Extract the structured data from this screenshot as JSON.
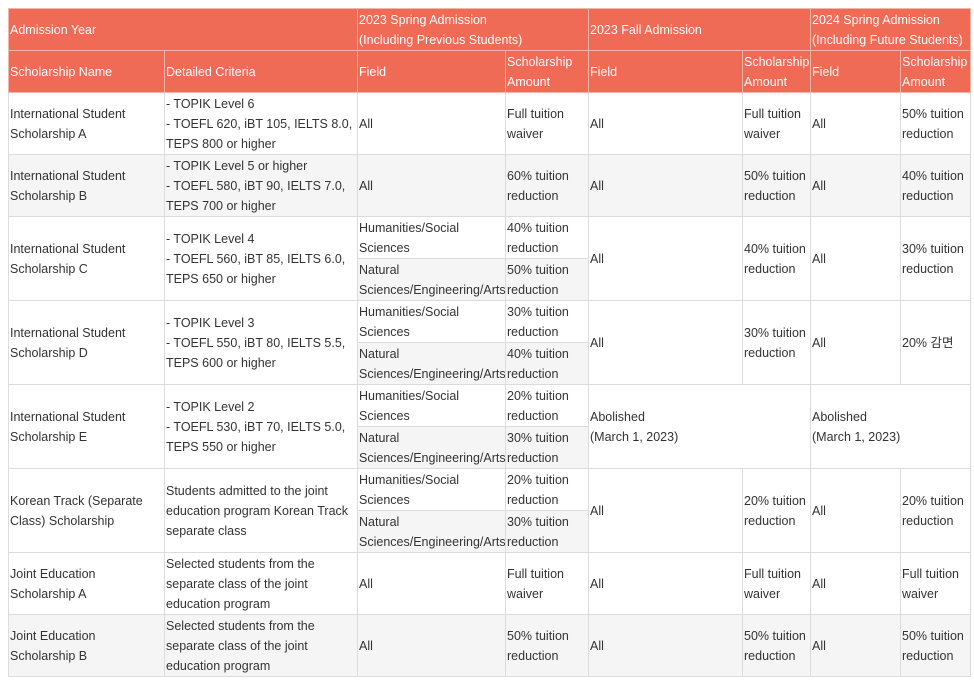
{
  "header": {
    "year": "Admission Year",
    "groups": [
      [
        "2023 Spring Admission",
        "(Including Previous Students)"
      ],
      [
        "2023 Fall Admission"
      ],
      [
        "2024 Spring Admission",
        "(Including Future Students)"
      ]
    ],
    "columns": [
      "Scholarship Name",
      "Detailed Criteria",
      "Field",
      "Scholarship Amount",
      "Field",
      "Scholarship Amount",
      "Field",
      "Scholarship Amount"
    ]
  },
  "rows": [
    {
      "name": "International Student Scholarship A",
      "criteria": [
        "- TOPIK Level 6",
        "- TOEFL 620, iBT 105, IELTS 8.0, TEPS 800 or higher"
      ],
      "spring2023": [
        {
          "field": "All",
          "amount": "Full tuition waiver"
        }
      ],
      "fall2023": {
        "field": "All",
        "amount": "Full tuition waiver"
      },
      "spring2024": {
        "field": "All",
        "amount": "50% tuition reduction"
      }
    },
    {
      "name": "International Student Scholarship B",
      "criteria": [
        "- TOPIK Level 5 or higher",
        "- TOEFL 580, iBT 90, IELTS 7.0, TEPS 700 or higher"
      ],
      "spring2023": [
        {
          "field": "All",
          "amount": "60% tuition reduction"
        }
      ],
      "fall2023": {
        "field": "All",
        "amount": "50% tuition reduction"
      },
      "spring2024": {
        "field": "All",
        "amount": "40% tuition reduction"
      }
    },
    {
      "name": "International Student Scholarship C",
      "criteria": [
        "- TOPIK Level 4",
        "- TOEFL 560, iBT 85, IELTS 6.0, TEPS 650 or higher"
      ],
      "spring2023": [
        {
          "field": "Humanities/Social Sciences",
          "amount": "40% tuition reduction"
        },
        {
          "field": "Natural Sciences/Engineering/Arts",
          "amount": "50% tuition reduction"
        }
      ],
      "fall2023": {
        "field": "All",
        "amount": "40% tuition reduction"
      },
      "spring2024": {
        "field": "All",
        "amount": "30% tuition reduction"
      }
    },
    {
      "name": "International Student Scholarship D",
      "criteria": [
        "- TOPIK Level 3",
        "- TOEFL 550, iBT 80, IELTS 5.5, TEPS 600 or higher"
      ],
      "spring2023": [
        {
          "field": "Humanities/Social Sciences",
          "amount": "30% tuition reduction"
        },
        {
          "field": "Natural Sciences/Engineering/Arts",
          "amount": "40% tuition reduction"
        }
      ],
      "fall2023": {
        "field": "All",
        "amount": "30% tuition reduction"
      },
      "spring2024": {
        "field": "All",
        "amount": "20% 감면"
      }
    },
    {
      "name": "International Student Scholarship E",
      "criteria": [
        "- TOPIK Level 2",
        "- TOEFL 530, iBT 70, IELTS 5.0, TEPS 550 or higher"
      ],
      "spring2023": [
        {
          "field": "Humanities/Social Sciences",
          "amount": "20% tuition reduction"
        },
        {
          "field": "Natural Sciences/Engineering/Arts",
          "amount": "30% tuition reduction"
        }
      ],
      "fall2023": {
        "status": [
          "Abolished",
          "(March 1, 2023)"
        ]
      },
      "spring2024": {
        "status": [
          "Abolished",
          "(March 1, 2023)"
        ]
      }
    },
    {
      "name": "Korean Track (Separate Class) Scholarship",
      "criteria": [
        "Students admitted to the joint education program Korean Track separate class"
      ],
      "spring2023": [
        {
          "field": "Humanities/Social Sciences",
          "amount": "20% tuition reduction"
        },
        {
          "field": "Natural Sciences/Engineering/Arts",
          "amount": "30% tuition reduction"
        }
      ],
      "fall2023": {
        "field": "All",
        "amount": "20% tuition reduction"
      },
      "spring2024": {
        "field": "All",
        "amount": "20% tuition reduction"
      }
    },
    {
      "name": "Joint Education Scholarship A",
      "criteria": [
        "Selected students from the separate class of the joint education program"
      ],
      "spring2023": [
        {
          "field": "All",
          "amount": "Full tuition waiver"
        }
      ],
      "fall2023": {
        "field": "All",
        "amount": "Full tuition waiver"
      },
      "spring2024": {
        "field": "All",
        "amount": "Full tuition waiver"
      }
    },
    {
      "name": "Joint Education Scholarship B",
      "criteria": [
        "Selected students from the separate class of the joint education program"
      ],
      "spring2023": [
        {
          "field": "All",
          "amount": "50% tuition reduction"
        }
      ],
      "fall2023": {
        "field": "All",
        "amount": "50% tuition reduction"
      },
      "spring2024": {
        "field": "All",
        "amount": "50% tuition reduction"
      }
    }
  ]
}
